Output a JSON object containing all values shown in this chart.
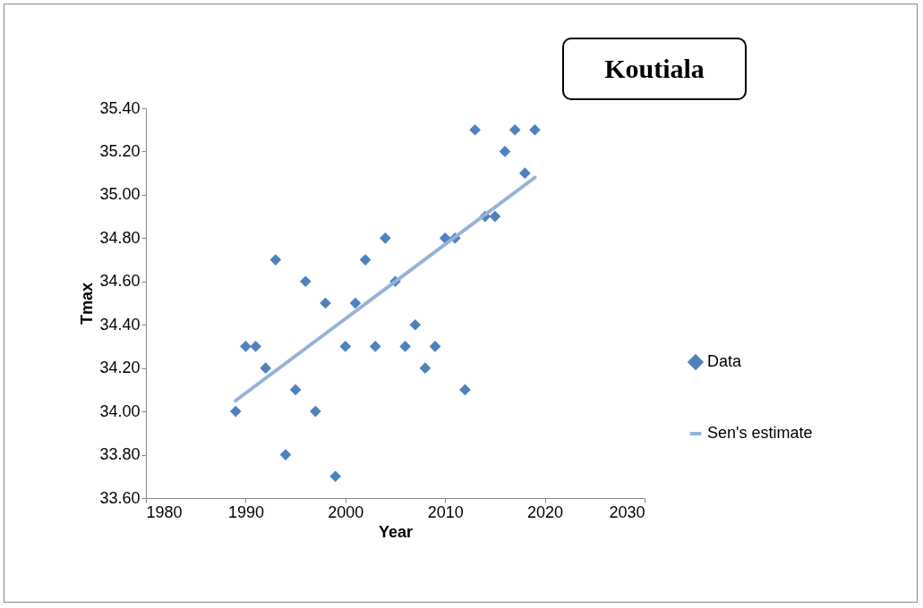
{
  "chart_data": {
    "type": "scatter",
    "title": "Koutiala",
    "xlabel": "Year",
    "ylabel": "Tmax",
    "xlim": [
      1980,
      2030
    ],
    "xticks": [
      1980,
      1990,
      2000,
      2010,
      2020,
      2030
    ],
    "ylim": [
      33.6,
      35.4
    ],
    "yticks": [
      {
        "value": 33.6,
        "label": "33.60"
      },
      {
        "value": 33.8,
        "label": "33.80"
      },
      {
        "value": 34.0,
        "label": "34.00"
      },
      {
        "value": 34.2,
        "label": "34.20"
      },
      {
        "value": 34.4,
        "label": "34.40"
      },
      {
        "value": 34.6,
        "label": "34.60"
      },
      {
        "value": 34.8,
        "label": "34.80"
      },
      {
        "value": 35.0,
        "label": "35.00"
      },
      {
        "value": 35.2,
        "label": "35.20"
      },
      {
        "value": 35.4,
        "label": "35.40"
      }
    ],
    "grid": false,
    "legend": "right",
    "series": [
      {
        "name": "Data",
        "marker": "diamond",
        "color": "#4f81bd",
        "x": [
          1989,
          1990,
          1991,
          1992,
          1993,
          1994,
          1995,
          1996,
          1997,
          1998,
          1999,
          2000,
          2001,
          2002,
          2003,
          2004,
          2005,
          2006,
          2007,
          2008,
          2009,
          2010,
          2011,
          2012,
          2013,
          2014,
          2015,
          2016,
          2017,
          2018,
          2019
        ],
        "values": [
          34.0,
          34.3,
          34.3,
          34.2,
          34.7,
          33.8,
          34.1,
          34.6,
          34.0,
          34.5,
          33.7,
          34.3,
          34.5,
          34.7,
          34.3,
          34.8,
          34.6,
          34.3,
          34.4,
          34.2,
          34.3,
          34.8,
          34.8,
          34.1,
          35.3,
          34.9,
          34.9,
          35.2,
          35.3,
          35.1,
          35.3
        ]
      },
      {
        "name": "Sen's estimate",
        "type": "line",
        "marker": "none",
        "line_style": "solid",
        "color": "#95b3d7",
        "x": [
          1989,
          2019
        ],
        "values": [
          34.05,
          35.08
        ]
      }
    ]
  }
}
